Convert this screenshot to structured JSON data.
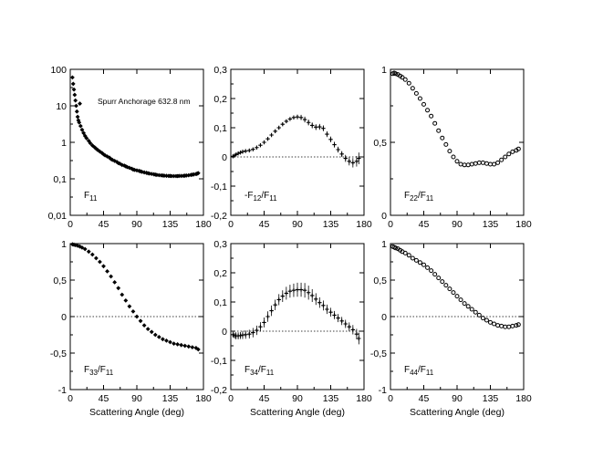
{
  "chart_data": [
    {
      "type": "scatter",
      "panel": "F11",
      "label": "F",
      "label_sub": "11",
      "label_suffix_sub": "",
      "annotation": "Spurr Anchorage 632.8 nm",
      "yscale": "log",
      "ylim": [
        0.01,
        100
      ],
      "xlim": [
        0,
        180
      ],
      "xticks": [
        0,
        45,
        90,
        135,
        180
      ],
      "xtick_labels": [
        "0",
        "45",
        "90",
        "135",
        "180"
      ],
      "yticks": [
        0.01,
        0.1,
        1,
        10,
        100
      ],
      "ytick_labels": [
        "0,01",
        "0,1",
        "1",
        "10",
        "100"
      ],
      "xlabel": "",
      "reference_line": null,
      "series": [
        {
          "x": [
            3,
            4,
            5,
            6,
            7,
            8,
            9,
            10,
            11,
            12,
            14,
            16,
            18,
            20,
            22,
            25,
            27,
            30,
            33,
            35,
            37,
            40,
            43,
            45,
            47,
            50,
            53,
            55,
            57,
            60,
            63,
            65,
            67,
            70,
            73,
            75,
            77,
            80,
            83,
            85,
            87,
            90,
            93,
            95,
            97,
            100,
            103,
            105,
            107,
            110,
            113,
            115,
            117,
            120,
            123,
            125,
            127,
            130,
            133,
            135,
            137,
            140,
            143,
            145,
            147,
            150,
            153,
            155,
            157,
            160,
            163,
            165,
            167,
            170,
            171,
            172,
            173
          ],
          "y": [
            60,
            40,
            28,
            20,
            14,
            10,
            7,
            5,
            4,
            3.5,
            2.8,
            2.2,
            1.8,
            1.5,
            1.3,
            1.1,
            0.95,
            0.82,
            0.73,
            0.67,
            0.62,
            0.56,
            0.51,
            0.47,
            0.44,
            0.41,
            0.38,
            0.35,
            0.33,
            0.31,
            0.29,
            0.27,
            0.26,
            0.24,
            0.23,
            0.22,
            0.21,
            0.2,
            0.19,
            0.18,
            0.175,
            0.17,
            0.165,
            0.16,
            0.155,
            0.15,
            0.146,
            0.142,
            0.139,
            0.136,
            0.133,
            0.13,
            0.128,
            0.126,
            0.124,
            0.123,
            0.122,
            0.121,
            0.12,
            0.12,
            0.119,
            0.119,
            0.119,
            0.119,
            0.12,
            0.12,
            0.121,
            0.122,
            0.123,
            0.125,
            0.128,
            0.13,
            0.132,
            0.135,
            0.137,
            0.14,
            0.143
          ],
          "err": []
        },
        {
          "x": [
            13
          ],
          "y": [
            11.5
          ],
          "err": []
        }
      ]
    },
    {
      "type": "scatter",
      "panel": "-F12/F11",
      "label": "-F",
      "label_sub": "12",
      "label_suffix_sub": "11",
      "annotation": "",
      "yscale": "linear",
      "ylim": [
        -0.2,
        0.3
      ],
      "xlim": [
        0,
        180
      ],
      "xticks": [
        0,
        45,
        90,
        135,
        180
      ],
      "xtick_labels": [
        "0",
        "45",
        "90",
        "135",
        "180"
      ],
      "yticks": [
        -0.2,
        -0.1,
        0,
        0.1,
        0.2,
        0.3
      ],
      "ytick_labels": [
        "-0,2",
        "-0,1",
        "0",
        "0,1",
        "0,2",
        "0,3"
      ],
      "xlabel": "",
      "reference_line": 0,
      "series": [
        {
          "x": [
            3,
            5,
            7,
            10,
            13,
            16,
            20,
            25,
            30,
            35,
            40,
            45,
            50,
            55,
            60,
            65,
            70,
            75,
            80,
            85,
            90,
            95,
            100,
            105,
            110,
            115,
            120,
            125,
            130,
            135,
            140,
            145,
            150,
            155,
            160,
            165,
            170,
            173
          ],
          "y": [
            0.002,
            0.005,
            0.008,
            0.012,
            0.015,
            0.018,
            0.02,
            0.022,
            0.026,
            0.032,
            0.04,
            0.05,
            0.062,
            0.075,
            0.088,
            0.1,
            0.112,
            0.122,
            0.13,
            0.135,
            0.137,
            0.135,
            0.128,
            0.118,
            0.108,
            0.102,
            0.103,
            0.098,
            0.078,
            0.06,
            0.042,
            0.025,
            0.01,
            -0.005,
            -0.015,
            -0.02,
            -0.015,
            -0.005
          ],
          "err": [
            0.006,
            0.006,
            0.005,
            0.005,
            0.005,
            0.005,
            0.004,
            0.004,
            0.004,
            0.004,
            0.004,
            0.004,
            0.004,
            0.004,
            0.005,
            0.005,
            0.005,
            0.006,
            0.006,
            0.007,
            0.008,
            0.009,
            0.01,
            0.01,
            0.01,
            0.01,
            0.01,
            0.01,
            0.01,
            0.01,
            0.01,
            0.01,
            0.01,
            0.012,
            0.014,
            0.016,
            0.018,
            0.02
          ]
        }
      ]
    },
    {
      "type": "scatter",
      "panel": "F22/F11",
      "label": "F",
      "label_sub": "22",
      "label_suffix_sub": "11",
      "annotation": "",
      "yscale": "linear",
      "ylim": [
        0,
        1
      ],
      "xlim": [
        0,
        180
      ],
      "xticks": [
        0,
        45,
        90,
        135,
        180
      ],
      "xtick_labels": [
        "0",
        "45",
        "90",
        "135",
        "180"
      ],
      "yticks": [
        0,
        0.5,
        1
      ],
      "ytick_labels": [
        "0",
        "0,5",
        "1"
      ],
      "xlabel": "",
      "reference_line": null,
      "series": [
        {
          "x": [
            3,
            5,
            7,
            10,
            13,
            16,
            20,
            25,
            30,
            35,
            40,
            45,
            50,
            55,
            60,
            65,
            70,
            75,
            80,
            85,
            90,
            95,
            100,
            105,
            110,
            115,
            120,
            125,
            130,
            135,
            140,
            145,
            150,
            155,
            160,
            165,
            170,
            173
          ],
          "y": [
            0.97,
            0.975,
            0.97,
            0.965,
            0.955,
            0.945,
            0.93,
            0.905,
            0.87,
            0.835,
            0.8,
            0.76,
            0.72,
            0.68,
            0.63,
            0.58,
            0.53,
            0.485,
            0.44,
            0.4,
            0.37,
            0.35,
            0.345,
            0.345,
            0.35,
            0.355,
            0.36,
            0.36,
            0.355,
            0.35,
            0.35,
            0.36,
            0.38,
            0.4,
            0.42,
            0.435,
            0.445,
            0.455
          ],
          "err": []
        }
      ]
    },
    {
      "type": "scatter",
      "panel": "F33/F11",
      "label": "F",
      "label_sub": "33",
      "label_suffix_sub": "11",
      "annotation": "",
      "yscale": "linear",
      "ylim": [
        -1,
        1
      ],
      "xlim": [
        0,
        180
      ],
      "xticks": [
        0,
        45,
        90,
        135,
        180
      ],
      "xtick_labels": [
        "0",
        "45",
        "90",
        "135",
        "180"
      ],
      "yticks": [
        -1,
        -0.5,
        0,
        0.5,
        1
      ],
      "ytick_labels": [
        "-1",
        "-0,5",
        "0",
        "0,5",
        "1"
      ],
      "xlabel": "Scattering Angle (deg)",
      "reference_line": 0,
      "series": [
        {
          "x": [
            3,
            5,
            7,
            10,
            13,
            16,
            20,
            25,
            30,
            35,
            40,
            45,
            50,
            55,
            60,
            65,
            70,
            75,
            80,
            85,
            90,
            95,
            100,
            105,
            110,
            115,
            120,
            125,
            130,
            135,
            140,
            145,
            150,
            155,
            160,
            165,
            170,
            173
          ],
          "y": [
            0.99,
            0.985,
            0.98,
            0.97,
            0.96,
            0.945,
            0.925,
            0.89,
            0.85,
            0.8,
            0.75,
            0.69,
            0.62,
            0.55,
            0.47,
            0.39,
            0.3,
            0.22,
            0.14,
            0.07,
            0.0,
            -0.06,
            -0.12,
            -0.17,
            -0.21,
            -0.25,
            -0.28,
            -0.31,
            -0.33,
            -0.35,
            -0.37,
            -0.38,
            -0.39,
            -0.4,
            -0.41,
            -0.42,
            -0.43,
            -0.45
          ],
          "err": []
        }
      ]
    },
    {
      "type": "scatter",
      "panel": "F34/F11",
      "label": "F",
      "label_sub": "34",
      "label_suffix_sub": "11",
      "annotation": "",
      "yscale": "linear",
      "ylim": [
        -0.2,
        0.3
      ],
      "xlim": [
        0,
        180
      ],
      "xticks": [
        0,
        45,
        90,
        135,
        180
      ],
      "xtick_labels": [
        "0",
        "45",
        "90",
        "135",
        "180"
      ],
      "yticks": [
        -0.2,
        -0.1,
        0,
        0.1,
        0.2,
        0.3
      ],
      "ytick_labels": [
        "-0,2",
        "-0,1",
        "0",
        "0,1",
        "0,2",
        "0,3"
      ],
      "xlabel": "Scattering Angle (deg)",
      "reference_line": 0,
      "series": [
        {
          "x": [
            3,
            5,
            7,
            10,
            13,
            16,
            20,
            25,
            30,
            35,
            40,
            45,
            50,
            55,
            60,
            65,
            70,
            75,
            80,
            85,
            90,
            95,
            100,
            105,
            110,
            115,
            120,
            125,
            130,
            135,
            140,
            145,
            150,
            155,
            160,
            165,
            170,
            173
          ],
          "y": [
            -0.012,
            -0.015,
            -0.016,
            -0.016,
            -0.015,
            -0.013,
            -0.012,
            -0.01,
            -0.005,
            0.003,
            0.015,
            0.03,
            0.05,
            0.07,
            0.09,
            0.108,
            0.12,
            0.13,
            0.137,
            0.14,
            0.142,
            0.142,
            0.14,
            0.132,
            0.122,
            0.11,
            0.098,
            0.088,
            0.075,
            0.065,
            0.055,
            0.045,
            0.035,
            0.025,
            0.015,
            0.005,
            -0.01,
            -0.025
          ],
          "err": [
            0.01,
            0.01,
            0.012,
            0.012,
            0.012,
            0.014,
            0.014,
            0.015,
            0.016,
            0.016,
            0.016,
            0.017,
            0.018,
            0.018,
            0.018,
            0.019,
            0.02,
            0.022,
            0.022,
            0.023,
            0.024,
            0.024,
            0.025,
            0.024,
            0.022,
            0.02,
            0.018,
            0.017,
            0.016,
            0.015,
            0.014,
            0.014,
            0.014,
            0.014,
            0.015,
            0.016,
            0.018,
            0.02
          ]
        }
      ]
    },
    {
      "type": "scatter",
      "panel": "F44/F11",
      "label": "F",
      "label_sub": "44",
      "label_suffix_sub": "11",
      "annotation": "",
      "yscale": "linear",
      "ylim": [
        -1,
        1
      ],
      "xlim": [
        0,
        180
      ],
      "xticks": [
        0,
        45,
        90,
        135,
        180
      ],
      "xtick_labels": [
        "0",
        "45",
        "90",
        "135",
        "180"
      ],
      "yticks": [
        -1,
        -0.5,
        0,
        0.5,
        1
      ],
      "ytick_labels": [
        "-1",
        "-0,5",
        "0",
        "0,5",
        "1"
      ],
      "xlabel": "Scattering Angle (deg)",
      "reference_line": 0,
      "series": [
        {
          "x": [
            3,
            5,
            7,
            10,
            13,
            16,
            20,
            25,
            30,
            35,
            40,
            45,
            50,
            55,
            60,
            65,
            70,
            75,
            80,
            85,
            90,
            95,
            100,
            105,
            110,
            115,
            120,
            125,
            130,
            135,
            140,
            145,
            150,
            155,
            160,
            165,
            170,
            173
          ],
          "y": [
            0.96,
            0.95,
            0.94,
            0.93,
            0.91,
            0.89,
            0.87,
            0.84,
            0.8,
            0.77,
            0.74,
            0.71,
            0.67,
            0.63,
            0.58,
            0.53,
            0.48,
            0.43,
            0.38,
            0.33,
            0.28,
            0.23,
            0.18,
            0.14,
            0.1,
            0.06,
            0.02,
            -0.02,
            -0.05,
            -0.08,
            -0.1,
            -0.12,
            -0.13,
            -0.14,
            -0.14,
            -0.13,
            -0.12,
            -0.11
          ],
          "err": []
        }
      ]
    }
  ]
}
